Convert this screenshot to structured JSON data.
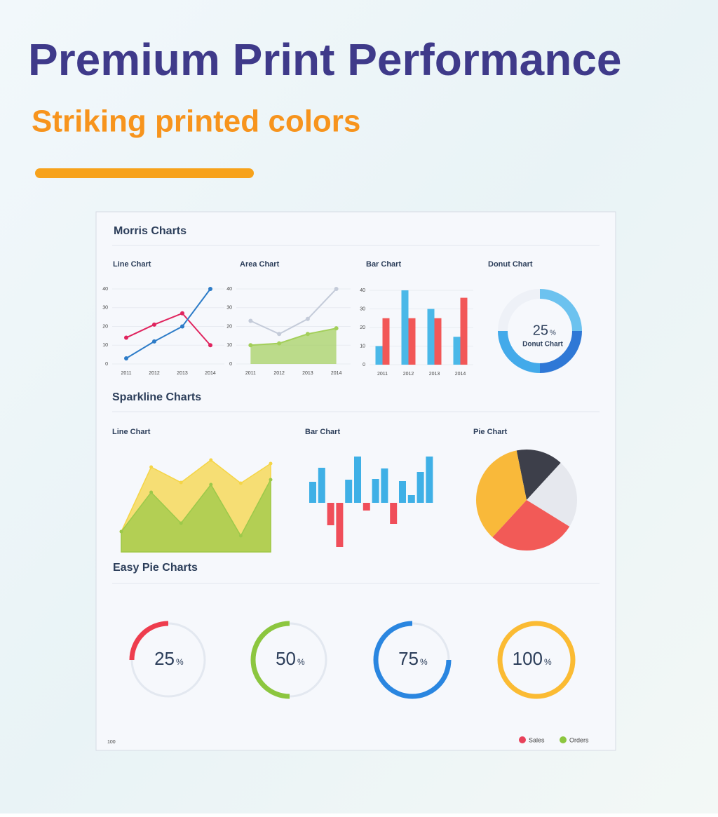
{
  "header": {
    "title": "Premium Print Performance",
    "subtitle": "Striking printed colors"
  },
  "sections": [
    "Morris Charts",
    "Sparkline Charts",
    "Easy Pie Charts"
  ],
  "chart_data": [
    {
      "type": "line",
      "title": "Line Chart",
      "categories": [
        "2011",
        "2012",
        "2013",
        "2014"
      ],
      "ylim": [
        0,
        40
      ],
      "yticks": [
        0,
        10,
        20,
        30,
        40
      ],
      "grid": true,
      "series": [
        {
          "color": "#e0245e",
          "values": [
            14,
            21,
            27,
            10
          ]
        },
        {
          "color": "#2d7cc8",
          "values": [
            3,
            12,
            20,
            40
          ]
        }
      ]
    },
    {
      "type": "area",
      "title": "Area Chart",
      "categories": [
        "2011",
        "2012",
        "2013",
        "2014"
      ],
      "ylim": [
        0,
        40
      ],
      "yticks": [
        0,
        10,
        20,
        30,
        40
      ],
      "grid": true,
      "series": [
        {
          "color": "#c4cbd9",
          "values": [
            23,
            16,
            24,
            40
          ]
        },
        {
          "color": "#a3cf5a",
          "values": [
            10,
            11,
            16,
            19
          ]
        }
      ]
    },
    {
      "type": "bar",
      "title": "Bar Chart",
      "categories": [
        "2011",
        "2012",
        "2013",
        "2014"
      ],
      "ylim": [
        0,
        40
      ],
      "yticks": [
        0,
        10,
        20,
        30,
        40
      ],
      "grid": true,
      "series": [
        {
          "color": "#4ab8e8",
          "values": [
            10,
            40,
            30,
            15
          ]
        },
        {
          "color": "#f25757",
          "values": [
            25,
            25,
            25,
            36
          ]
        }
      ]
    },
    {
      "type": "donut",
      "title": "Donut Chart",
      "center_value": 25,
      "unit": "%",
      "center_label": "Donut Chart",
      "values": [
        25,
        25,
        25,
        25
      ],
      "colors": [
        "#6cc2ef",
        "#2f78d6",
        "#43aaea",
        "#eef1f7"
      ]
    },
    {
      "type": "sparkline-area",
      "title": "Line Chart",
      "ylim": [
        0,
        140
      ],
      "series": [
        {
          "color": "#f5d547",
          "values": [
            29,
            121,
            99,
            131,
            98,
            126
          ]
        },
        {
          "color": "#9cc94a",
          "values": [
            29,
            85,
            41,
            96,
            23,
            103
          ]
        }
      ]
    },
    {
      "type": "sparkline-bar",
      "title": "Bar Chart",
      "ylim": [
        -70,
        70
      ],
      "pos_color": "#3fb0e6",
      "neg_color": "#f04e5a",
      "values": [
        30,
        50,
        -32,
        -63,
        33,
        66,
        -11,
        34,
        49,
        -30,
        31,
        11,
        44,
        66
      ]
    },
    {
      "type": "pie",
      "title": "Pie Chart",
      "values": [
        15,
        22,
        28,
        35
      ],
      "colors": [
        "#3d3f4a",
        "#e6e8ee",
        "#f25a57",
        "#f9b93a"
      ]
    },
    {
      "type": "gauge",
      "ylim": [
        0,
        100
      ],
      "unit": "%",
      "values": [
        25,
        50,
        75,
        100
      ],
      "colors": [
        "#ee3d4e",
        "#8cc63f",
        "#2a86e0",
        "#fbbb33"
      ]
    }
  ],
  "legend": [
    {
      "name": "Sales",
      "color": "#e8415a"
    },
    {
      "name": "Orders",
      "color": "#8cc63f"
    }
  ],
  "corner_label": 100
}
